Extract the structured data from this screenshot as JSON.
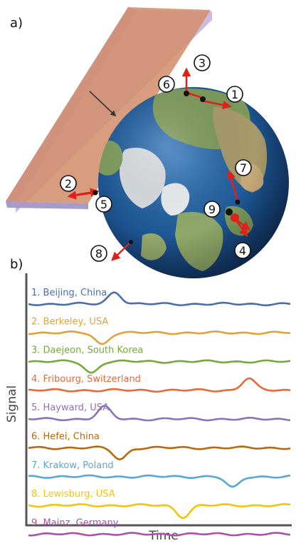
{
  "panel_a": {
    "label": "a)",
    "markers": [
      "1",
      "2",
      "3",
      "4",
      "5",
      "6",
      "7",
      "8",
      "9"
    ]
  },
  "panel_b": {
    "label": "b)",
    "ylabel": "Signal",
    "xlabel": "Time"
  },
  "chart_data": {
    "type": "line",
    "xlabel": "Time",
    "ylabel": "Signal",
    "series": [
      {
        "name": "1. Beijing, China",
        "color": "#4a6fa8",
        "feature": "peak",
        "center": 0.33
      },
      {
        "name": "2. Berkeley, USA",
        "color": "#e2a23a",
        "feature": "dip",
        "center": 0.28
      },
      {
        "name": "3. Daejeon, South Korea",
        "color": "#76a83a",
        "feature": "dip",
        "center": 0.24
      },
      {
        "name": "4. Fribourg, Switzerland",
        "color": "#e66a3a",
        "feature": "peak",
        "center": 0.84
      },
      {
        "name": "5. Hayward, USA",
        "color": "#8b74b6",
        "feature": "peak",
        "center": 0.29
      },
      {
        "name": "6. Hefei, China",
        "color": "#b8690f",
        "feature": "dip",
        "center": 0.35
      },
      {
        "name": "7. Krakow, Poland",
        "color": "#59a7d6",
        "feature": "dip",
        "center": 0.78
      },
      {
        "name": "8. Lewisburg, USA",
        "color": "#f1c40f",
        "feature": "dip",
        "center": 0.59
      },
      {
        "name": "9. Mainz, Germany",
        "color": "#a852a8",
        "feature": "flat",
        "center": 0.5
      }
    ]
  }
}
